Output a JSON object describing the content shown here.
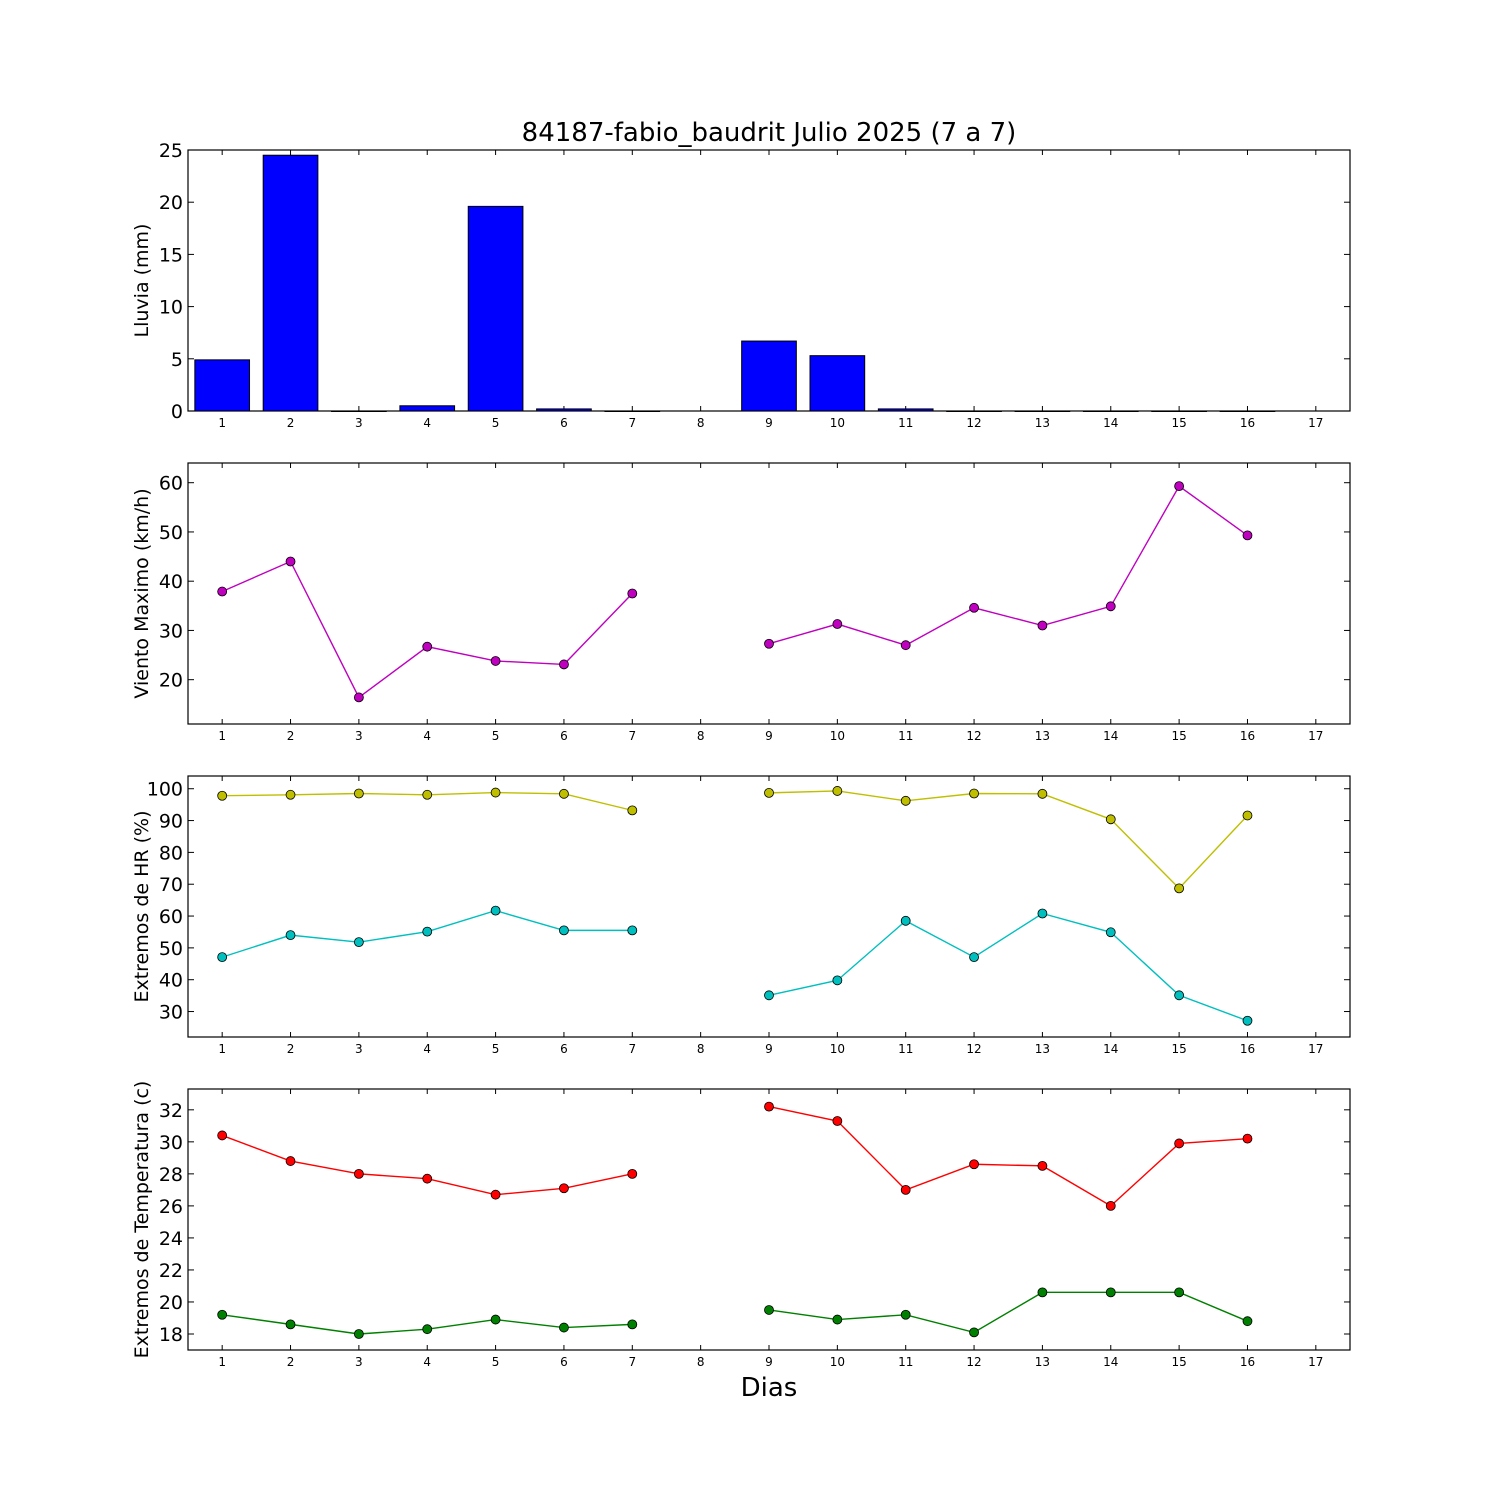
{
  "chart_data": [
    {
      "type": "bar",
      "title": "84187-fabio_baudrit Julio 2025  (7 a 7)",
      "ylabel": "Lluvia (mm)",
      "xlabel": "",
      "x": [
        1,
        2,
        3,
        4,
        5,
        6,
        7,
        8,
        9,
        10,
        11,
        12,
        13,
        14,
        15,
        16,
        17
      ],
      "values": [
        4.9,
        24.5,
        0,
        0.5,
        19.6,
        0.2,
        0,
        null,
        6.7,
        5.3,
        0.2,
        0,
        0,
        0,
        0,
        0,
        null
      ],
      "ylim": [
        0,
        25
      ],
      "yticks": [
        0,
        5,
        10,
        15,
        20,
        25
      ],
      "color": "#0000ff",
      "grid": false
    },
    {
      "type": "line",
      "ylabel": "Viento Maximo (km/h)",
      "xlabel": "",
      "x": [
        1,
        2,
        3,
        4,
        5,
        6,
        7,
        8,
        9,
        10,
        11,
        12,
        13,
        14,
        15,
        16,
        17
      ],
      "series": [
        {
          "values": [
            37.9,
            44.0,
            16.4,
            26.7,
            23.8,
            23.1,
            37.5,
            null,
            27.3,
            31.3,
            27.0,
            34.6,
            31.0,
            34.9,
            59.3,
            49.3,
            null
          ],
          "color": "#bf00bf"
        }
      ],
      "ylim": [
        11,
        64
      ],
      "yticks": [
        20,
        30,
        40,
        50,
        60
      ],
      "grid": false
    },
    {
      "type": "line",
      "ylabel": "Extremos de HR (%)",
      "xlabel": "",
      "x": [
        1,
        2,
        3,
        4,
        5,
        6,
        7,
        8,
        9,
        10,
        11,
        12,
        13,
        14,
        15,
        16,
        17
      ],
      "series": [
        {
          "values": [
            97.8,
            98.1,
            98.5,
            98.1,
            98.8,
            98.4,
            93.2,
            null,
            98.7,
            99.3,
            96.2,
            98.5,
            98.4,
            90.4,
            68.7,
            91.6,
            null
          ],
          "color": "#bfbf00"
        },
        {
          "values": [
            47.1,
            54.0,
            51.8,
            55.1,
            61.7,
            55.5,
            55.5,
            null,
            35.1,
            39.8,
            58.5,
            47.1,
            60.8,
            54.9,
            35.1,
            27.1,
            null
          ],
          "color": "#00bfbf"
        }
      ],
      "ylim": [
        22,
        104
      ],
      "yticks": [
        30,
        40,
        50,
        60,
        70,
        80,
        90,
        100
      ],
      "grid": false
    },
    {
      "type": "line",
      "ylabel": "Extremos de Temperatura (c)",
      "xlabel": "Dias",
      "x": [
        1,
        2,
        3,
        4,
        5,
        6,
        7,
        8,
        9,
        10,
        11,
        12,
        13,
        14,
        15,
        16,
        17
      ],
      "series": [
        {
          "values": [
            30.4,
            28.8,
            28.0,
            27.7,
            26.7,
            27.1,
            28.0,
            null,
            32.2,
            31.3,
            27.0,
            28.6,
            28.5,
            26.0,
            29.9,
            30.2,
            null
          ],
          "color": "#ff0000"
        },
        {
          "values": [
            19.2,
            18.6,
            18.0,
            18.3,
            18.9,
            18.4,
            18.6,
            null,
            19.5,
            18.9,
            19.2,
            18.1,
            20.6,
            20.6,
            20.6,
            18.8,
            null
          ],
          "color": "#008000"
        }
      ],
      "ylim": [
        17,
        33.3
      ],
      "yticks": [
        18,
        20,
        22,
        24,
        26,
        28,
        30,
        32
      ],
      "grid": false
    }
  ]
}
